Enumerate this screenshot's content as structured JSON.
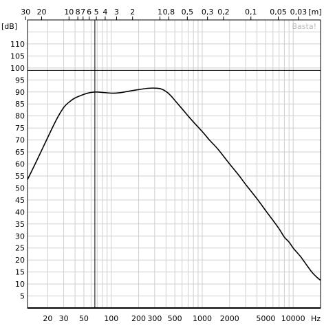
{
  "chart_data": {
    "type": "line",
    "xscale": "log",
    "xlim": [
      12,
      20000
    ],
    "ylim": [
      0,
      120
    ],
    "grid": true,
    "ylabel": "[dB]",
    "xunit": "Hz",
    "top_axis_unit": "[m]",
    "watermark": "Basta!",
    "y_ticks": [
      5,
      10,
      15,
      20,
      25,
      30,
      35,
      40,
      45,
      50,
      55,
      60,
      65,
      70,
      75,
      80,
      85,
      90,
      95,
      100,
      105,
      110
    ],
    "x_ticks": [
      {
        "value": 20,
        "label": "20"
      },
      {
        "value": 30,
        "label": "30"
      },
      {
        "value": 50,
        "label": "50"
      },
      {
        "value": 100,
        "label": "100"
      },
      {
        "value": 200,
        "label": "200"
      },
      {
        "value": 300,
        "label": "300"
      },
      {
        "value": 500,
        "label": "500"
      },
      {
        "value": 1000,
        "label": "1000"
      },
      {
        "value": 2000,
        "label": "2000"
      },
      {
        "value": 5000,
        "label": "5000"
      },
      {
        "value": 10000,
        "label": "10000"
      }
    ],
    "top_ticks": [
      {
        "value": 30,
        "label": "30"
      },
      {
        "value": 20,
        "label": "20"
      },
      {
        "value": 10,
        "label": "10"
      },
      {
        "value": 8,
        "label": "8"
      },
      {
        "value": 7,
        "label": "7"
      },
      {
        "value": 6,
        "label": "6"
      },
      {
        "value": 5,
        "label": "5"
      },
      {
        "value": 4,
        "label": "4"
      },
      {
        "value": 3,
        "label": "3"
      },
      {
        "value": 2,
        "label": "2"
      },
      {
        "value": 1,
        "label": "1"
      },
      {
        "value": 0.8,
        "label": "0,8"
      },
      {
        "value": 0.5,
        "label": "0,5"
      },
      {
        "value": 0.3,
        "label": "0,3"
      },
      {
        "value": 0.2,
        "label": "0,2"
      },
      {
        "value": 0.1,
        "label": "0,1"
      },
      {
        "value": 0.05,
        "label": "0,05"
      },
      {
        "value": 0.03,
        "label": "0,03"
      }
    ],
    "reference_lines": {
      "horizontal_db": 99,
      "vertical_hz": 66
    },
    "series": [
      {
        "color": "#000000",
        "x": [
          12,
          15,
          20,
          25,
          30,
          35,
          40,
          50,
          60,
          70,
          80,
          100,
          120,
          150,
          200,
          250,
          300,
          350,
          400,
          450,
          500,
          600,
          700,
          800,
          1000,
          1200,
          1500,
          2000,
          2500,
          3000,
          4000,
          5000,
          6000,
          7000,
          8000,
          9000,
          10000,
          12000,
          14000,
          16000,
          18000,
          20000
        ],
        "y": [
          53.5,
          61,
          71,
          78.5,
          83.5,
          86,
          87.5,
          89,
          89.8,
          90,
          89.8,
          89.5,
          89.6,
          90.2,
          91,
          91.5,
          91.6,
          91.3,
          90.2,
          88.5,
          86.5,
          83,
          80,
          77.5,
          73.5,
          70,
          66,
          60,
          55.5,
          51.5,
          45.5,
          40.5,
          36.5,
          33,
          29.5,
          27.5,
          25,
          21.5,
          18,
          15,
          13,
          11.5
        ]
      }
    ]
  }
}
